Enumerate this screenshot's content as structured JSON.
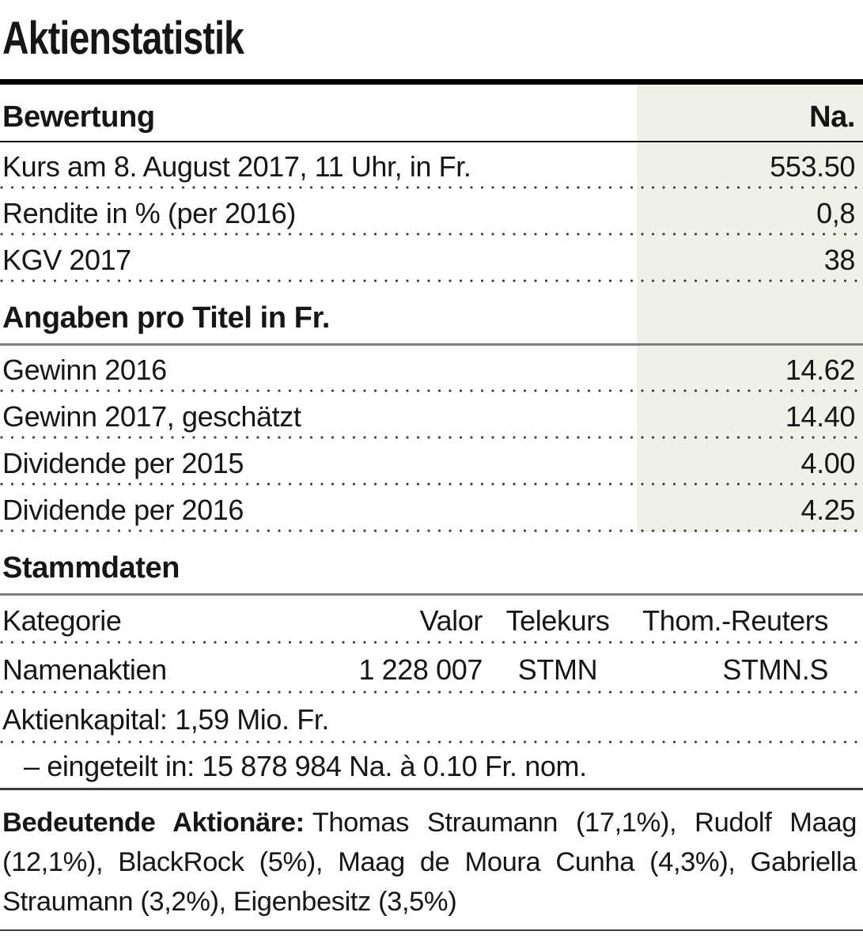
{
  "title": "Aktienstatistik",
  "colors": {
    "value_column_bg": "#f0efe8",
    "thick_rule": "#000000",
    "section_rule_gray": "#7d7d7d",
    "text": "#161616"
  },
  "bewertung": {
    "header": "Bewertung",
    "col_header": "Na.",
    "rows": [
      {
        "label": "Kurs am 8. August 2017, 11 Uhr, in Fr.",
        "value": "553.50"
      },
      {
        "label": "Rendite in % (per 2016)",
        "value": "0,8"
      },
      {
        "label": "KGV 2017",
        "value": "38"
      }
    ]
  },
  "angaben": {
    "header": "Angaben pro Titel in Fr.",
    "rows": [
      {
        "label": "Gewinn 2016",
        "value": "14.62"
      },
      {
        "label": "Gewinn 2017, geschätzt",
        "value": "14.40"
      },
      {
        "label": "Dividende per 2015",
        "value": "4.00"
      },
      {
        "label": "Dividende per 2016",
        "value": "4.25"
      }
    ]
  },
  "stammdaten": {
    "header": "Stammdaten",
    "kategorie": {
      "label": "Kategorie",
      "cols": [
        "Valor",
        "Telekurs",
        "Thom.-Reuters"
      ]
    },
    "namenaktien": {
      "label": "Namenaktien",
      "cols": [
        "1 228 007",
        "STMN",
        "STMN.S"
      ]
    },
    "aktienkapital": "Aktienkapital: 1,59 Mio. Fr.",
    "eingeteilt": "– eingeteilt in: 15 878 984 Na. à 0.10 Fr. nom."
  },
  "aktionaere": {
    "label": "Bedeutende Aktionäre:",
    "text": "Thomas Straumann (17,1%), Rudolf Maag (12,1%), BlackRock (5%), Maag de Moura Cunha (4,3%), Gabriella Straumann (3,2%), Eigenbesitz (3,5%)"
  }
}
